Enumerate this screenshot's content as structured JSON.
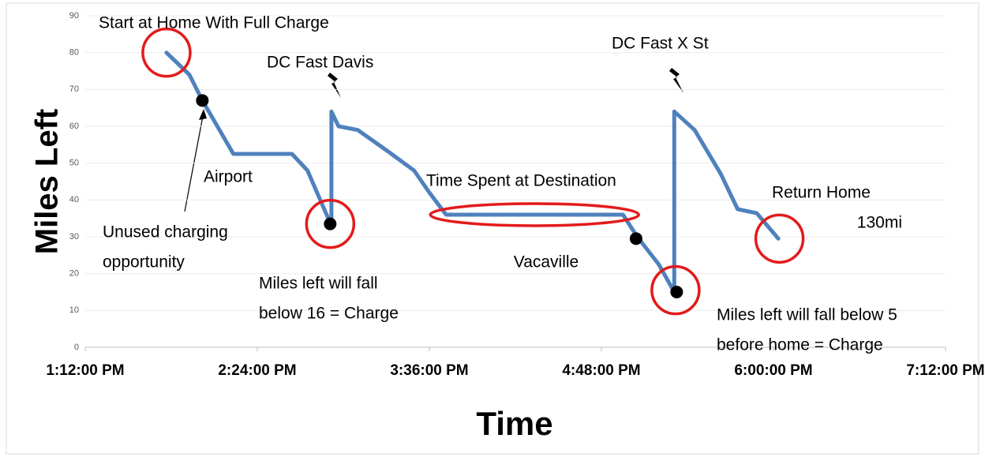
{
  "chart_data": {
    "type": "line",
    "y_axis_title": "Miles Left",
    "x_axis_title": "Time",
    "series": [
      {
        "name": "Miles Left",
        "color": "#4f81bd",
        "x": [
          826,
          835.6,
          841,
          854,
          878.5,
          885,
          895,
          895,
          898,
          906,
          918,
          929.6,
          936,
          943,
          1017,
          1023,
          1032,
          1038.5,
          1038.5,
          1047,
          1058,
          1065,
          1073,
          1082
        ],
        "values": [
          80,
          74,
          67,
          52.5,
          52.5,
          48,
          33,
          64,
          60,
          59,
          53.5,
          48,
          42,
          36,
          36,
          30,
          22.5,
          15,
          64,
          59,
          47,
          37.5,
          36.4,
          29.5
        ]
      }
    ],
    "points": {
      "color": "#000000",
      "x": [
        841,
        894.5,
        1022.5,
        1039.5
      ],
      "values": [
        67,
        33.5,
        29.5,
        15
      ]
    },
    "highlights": {
      "color": "#e31b1b",
      "x": [
        826,
        894.5,
        1039,
        1082.5
      ],
      "values": [
        80,
        33.5,
        15.5,
        29.5
      ]
    },
    "highlight_ranges": {
      "color": "#e31b1b",
      "x": [
        [
          943,
          1017
        ]
      ],
      "values": [
        36
      ]
    },
    "xlim": [
      792,
      1152
    ],
    "xticks": [
      {
        "value": 792,
        "label": "1:12:00 PM"
      },
      {
        "value": 864,
        "label": "2:24:00 PM"
      },
      {
        "value": 936,
        "label": "3:36:00 PM"
      },
      {
        "value": 1008,
        "label": "4:48:00 PM"
      },
      {
        "value": 1080,
        "label": "6:00:00 PM"
      },
      {
        "value": 1152,
        "label": "7:12:00 PM"
      }
    ],
    "ylim": [
      0,
      90
    ],
    "yticks": [
      0,
      10,
      20,
      30,
      40,
      50,
      60,
      70,
      80,
      90
    ],
    "grid": true,
    "annotations": [
      {
        "lines": [
          "Start at Home With Full Charge"
        ]
      },
      {
        "lines": [
          "DC Fast Davis"
        ]
      },
      {
        "lines": [
          "DC Fast X St"
        ]
      },
      {
        "lines": [
          "Airport"
        ]
      },
      {
        "lines": [
          "Time Spent at Destination"
        ]
      },
      {
        "lines": [
          "Return Home",
          "130mi"
        ]
      },
      {
        "lines": [
          "Unused charging",
          "opportunity"
        ]
      },
      {
        "lines": [
          "Vacaville"
        ]
      },
      {
        "lines": [
          "Miles left will fall",
          "below 16 = Charge"
        ]
      },
      {
        "lines": [
          "Miles left will fall below 5",
          "before home = Charge"
        ]
      }
    ]
  }
}
